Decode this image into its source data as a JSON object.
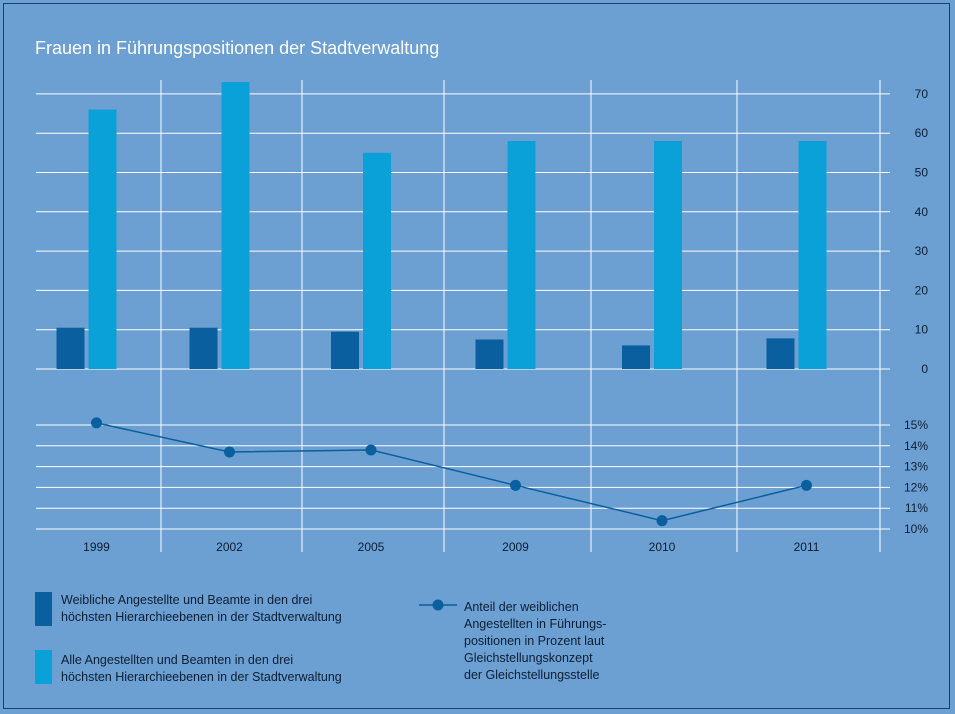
{
  "chart_data": [
    {
      "type": "bar",
      "title": "Frauen in Führungspositionen der Stadtverwaltung",
      "categories": [
        "1999",
        "2002",
        "2005",
        "2009",
        "2010",
        "2011"
      ],
      "ylim": [
        0,
        70
      ],
      "yticks": [
        "0",
        "10",
        "20",
        "30",
        "40",
        "50",
        "60",
        "70"
      ],
      "grid": true,
      "series": [
        {
          "name": "Weibliche Angestellte und Beamte in den drei höchsten Hierarchieebenen in der Stadtverwaltung",
          "color": "#0a5f9e",
          "values": [
            10.5,
            10.5,
            9.5,
            7.5,
            6,
            7.8
          ]
        },
        {
          "name": "Alle Angestellten und Beamten in den drei höchsten Hierarchieebenen in der Stadtverwaltung",
          "color": "#0aa0d8",
          "values": [
            66,
            73,
            55,
            58,
            58,
            58
          ]
        }
      ]
    },
    {
      "type": "line",
      "categories": [
        "1999",
        "2002",
        "2005",
        "2009",
        "2010",
        "2011"
      ],
      "ylim": [
        10,
        15
      ],
      "yticks": [
        "10%",
        "11%",
        "12%",
        "13%",
        "14%",
        "15%"
      ],
      "grid": true,
      "series": [
        {
          "name": "Anteil der weiblichen Angestellten in Führungs-positionen in Prozent laut Gleichstellungskonzept der Gleichstellungsstelle",
          "color": "#0a5f9e",
          "values": [
            15.1,
            13.7,
            13.8,
            12.1,
            10.4,
            12.1
          ]
        }
      ]
    }
  ],
  "legend": {
    "dark_bar": [
      "Weibliche Angestellte und Beamte in den drei",
      "höchsten Hierarchieebenen in der Stadtverwaltung"
    ],
    "light_bar": [
      "Alle Angestellten und Beamten in den drei",
      "höchsten Hierarchieebenen in der Stadtverwaltung"
    ],
    "line": [
      "Anteil der weiblichen",
      "Angestellten in Führungs-",
      "positionen in Prozent laut",
      "Gleichstellungskonzept",
      "der Gleichstellungsstelle"
    ]
  },
  "colors": {
    "background": "#6c9fd2",
    "dark_bar": "#0a5f9e",
    "light_bar": "#0aa0d8",
    "line": "#0a5f9e",
    "grid": "#ffffff",
    "text": "#0c1f33"
  }
}
